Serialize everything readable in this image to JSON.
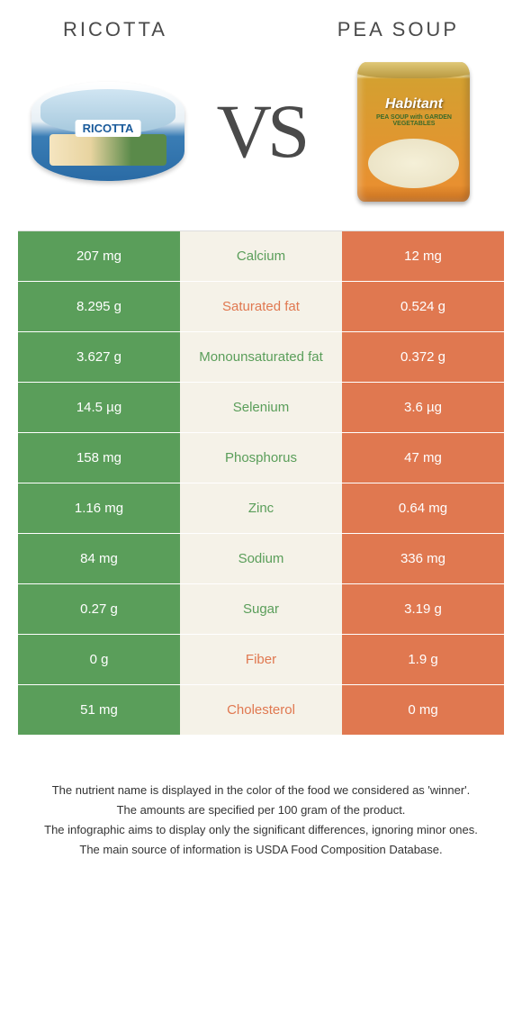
{
  "header": {
    "left_title": "RICOTTA",
    "right_title": "PEA SOUP",
    "vs_text": "VS"
  },
  "products": {
    "left_image_label": "RICOTTA",
    "right_image_brand": "Habitant",
    "right_image_sub": "PEA SOUP with GARDEN VEGETABLES"
  },
  "colors": {
    "left_bg": "#5a9e5a",
    "right_bg": "#e07850",
    "mid_bg": "#f5f2e8",
    "text_left_winner": "#5a9e5a",
    "text_right_winner": "#e07850"
  },
  "rows": [
    {
      "left": "207 mg",
      "label": "Calcium",
      "right": "12 mg",
      "winner": "left"
    },
    {
      "left": "8.295 g",
      "label": "Saturated fat",
      "right": "0.524 g",
      "winner": "right"
    },
    {
      "left": "3.627 g",
      "label": "Monounsaturated fat",
      "right": "0.372 g",
      "winner": "left"
    },
    {
      "left": "14.5 µg",
      "label": "Selenium",
      "right": "3.6 µg",
      "winner": "left"
    },
    {
      "left": "158 mg",
      "label": "Phosphorus",
      "right": "47 mg",
      "winner": "left"
    },
    {
      "left": "1.16 mg",
      "label": "Zinc",
      "right": "0.64 mg",
      "winner": "left"
    },
    {
      "left": "84 mg",
      "label": "Sodium",
      "right": "336 mg",
      "winner": "left"
    },
    {
      "left": "0.27 g",
      "label": "Sugar",
      "right": "3.19 g",
      "winner": "left"
    },
    {
      "left": "0 g",
      "label": "Fiber",
      "right": "1.9 g",
      "winner": "right"
    },
    {
      "left": "51 mg",
      "label": "Cholesterol",
      "right": "0 mg",
      "winner": "right"
    }
  ],
  "footer": {
    "line1": "The nutrient name is displayed in the color of the food we considered as 'winner'.",
    "line2": "The amounts are specified per 100 gram of the product.",
    "line3": "The infographic aims to display only the significant differences, ignoring minor ones.",
    "line4": "The main source of information is USDA Food Composition Database."
  }
}
